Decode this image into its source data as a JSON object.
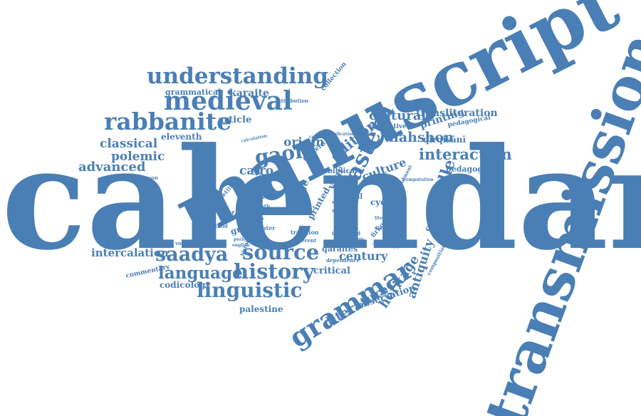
{
  "color": "#4a7fb5",
  "words": [
    {
      "id": "calendar",
      "text": "calendar"
    },
    {
      "id": "manuscript",
      "text": "manuscript"
    },
    {
      "id": "transmission",
      "text": "transmission"
    },
    {
      "id": "understanding",
      "text": "understanding"
    },
    {
      "id": "medieval",
      "text": "medieval"
    },
    {
      "id": "rabbanite",
      "text": "rabbanite"
    },
    {
      "id": "grammar",
      "text": "grammar"
    },
    {
      "id": "history",
      "text": "history"
    },
    {
      "id": "source",
      "text": "source"
    },
    {
      "id": "saadya",
      "text": "saadya"
    },
    {
      "id": "linguistic",
      "text": "linguistic"
    },
    {
      "id": "language",
      "text": "language"
    },
    {
      "id": "gaon",
      "text": "gaon"
    },
    {
      "id": "eastern",
      "text": "eastern"
    },
    {
      "id": "interaction",
      "text": "interaction"
    },
    {
      "id": "nahshon",
      "text": "nahshon"
    },
    {
      "id": "cultural",
      "text": "cultural"
    },
    {
      "id": "classical",
      "text": "classical"
    },
    {
      "id": "polemic",
      "text": "polemic"
    },
    {
      "id": "advanced",
      "text": "advanced"
    },
    {
      "id": "work",
      "text": "work"
    },
    {
      "id": "middle",
      "text": "middle"
    },
    {
      "id": "literature",
      "text": "literature"
    },
    {
      "id": "heritage",
      "text": "heritage"
    },
    {
      "id": "antiquity",
      "text": "antiquity"
    },
    {
      "id": "edition",
      "text": "edition"
    },
    {
      "id": "origin",
      "text": "origin"
    },
    {
      "id": "cairo",
      "text": "cairo"
    },
    {
      "id": "culture",
      "text": "culture"
    },
    {
      "id": "transliteration",
      "text": "transliteration"
    },
    {
      "id": "printing",
      "text": "printing"
    },
    {
      "id": "karaite",
      "text": "karaite"
    },
    {
      "id": "grammatical",
      "text": "grammatical"
    },
    {
      "id": "article",
      "text": "article"
    },
    {
      "id": "eleventh",
      "text": "eleventh"
    },
    {
      "id": "intercalation",
      "text": "intercalation"
    },
    {
      "id": "century",
      "text": "century"
    },
    {
      "id": "critical",
      "text": "critical"
    },
    {
      "id": "observation",
      "text": "observation"
    },
    {
      "id": "palestine",
      "text": "palestine"
    },
    {
      "id": "codicology",
      "text": "codicology"
    },
    {
      "id": "commentary",
      "text": "commentary"
    },
    {
      "id": "qaraites",
      "text": "qaraites"
    },
    {
      "id": "grant",
      "text": "grant"
    },
    {
      "id": "cycle",
      "text": "cycle"
    },
    {
      "id": "centuries",
      "text": "centuries"
    },
    {
      "id": "pedagogy",
      "text": "pedagogy"
    },
    {
      "id": "qirqisani",
      "text": "qirqisānī"
    },
    {
      "id": "pedagogical",
      "text": "pedagogical"
    },
    {
      "id": "collection",
      "text": "collection"
    },
    {
      "id": "attribution",
      "text": "attribution"
    },
    {
      "id": "correction",
      "text": "correction"
    },
    {
      "id": "reiterative",
      "text": "reiterative"
    },
    {
      "id": "biblical",
      "text": "biblical"
    },
    {
      "id": "modern",
      "text": "modern"
    },
    {
      "id": "age",
      "text": "age"
    },
    {
      "id": "year",
      "text": "year"
    },
    {
      "id": "printed",
      "text": "printed"
    },
    {
      "id": "table",
      "text": "table"
    },
    {
      "id": "textual",
      "text": "textual"
    },
    {
      "id": "firkovich",
      "text": "firkovich"
    },
    {
      "id": "ibraniyya",
      "text": "ʿibrāniyya"
    },
    {
      "id": "calendrical",
      "text": "calendrical"
    },
    {
      "id": "commandment",
      "text": "commandment"
    },
    {
      "id": "tradition",
      "text": "tradition"
    },
    {
      "id": "different",
      "text": "different"
    },
    {
      "id": "dependence",
      "text": "dependence"
    },
    {
      "id": "composition",
      "text": "composition"
    },
    {
      "id": "study",
      "text": "study"
    },
    {
      "id": "kitab",
      "text": "kitāb"
    },
    {
      "id": "petition",
      "text": "petition"
    },
    {
      "id": "chapter",
      "text": "chapter"
    },
    {
      "id": "tenth",
      "text": "tenth"
    },
    {
      "id": "method",
      "text": "method"
    },
    {
      "id": "system",
      "text": "system"
    },
    {
      "id": "evaluation",
      "text": "evaluation"
    },
    {
      "id": "interested",
      "text": "interested"
    },
    {
      "id": "scholar",
      "text": "scholar"
    },
    {
      "id": "disciplerson",
      "text": "disciplerson"
    },
    {
      "id": "vocalization",
      "text": "vocalization"
    },
    {
      "id": "historical",
      "text": "historical"
    },
    {
      "id": "translation",
      "text": "translation"
    },
    {
      "id": "implication",
      "text": "implication"
    },
    {
      "id": "computation",
      "text": "computation"
    },
    {
      "id": "calculation",
      "text": "calculation"
    },
    {
      "id": "english",
      "text": "english"
    },
    {
      "id": "period",
      "text": "period"
    },
    {
      "id": "book",
      "text": "book"
    },
    {
      "id": "literally",
      "text": "literally"
    },
    {
      "id": "diaspora",
      "text": "diaspora"
    }
  ]
}
